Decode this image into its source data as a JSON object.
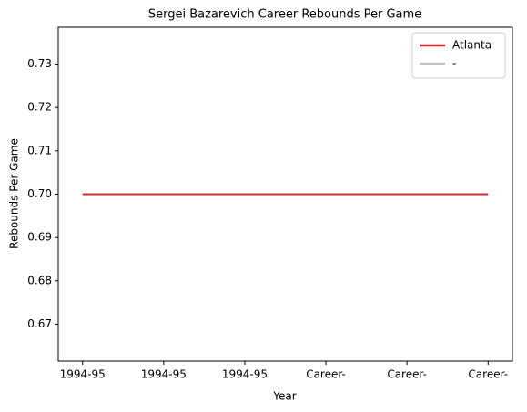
{
  "chart_data": {
    "type": "line",
    "title": "Sergei Bazarevich Career Rebounds Per Game",
    "x_label": "Year",
    "y_label": "Rebounds Per Game",
    "categories": [
      "1994-95",
      "1994-95",
      "1994-95",
      "Career-",
      "Career-",
      "Career-"
    ],
    "series": [
      {
        "name": "Atlanta",
        "color": "#d62728",
        "values": [
          0.7,
          0.7,
          0.7,
          0.7,
          0.7,
          0.7
        ]
      },
      {
        "name": "-",
        "color": "#c0c0c0",
        "values": [
          0.7,
          0.7,
          0.7,
          0.7,
          0.7,
          0.7
        ]
      }
    ],
    "ylim": [
      0.6615,
      0.7385
    ],
    "yticks": [
      {
        "value": 0.67,
        "label": "0.67"
      },
      {
        "value": 0.68,
        "label": "0.68"
      },
      {
        "value": 0.69,
        "label": "0.69"
      },
      {
        "value": 0.7,
        "label": "0.70"
      },
      {
        "value": 0.71,
        "label": "0.71"
      },
      {
        "value": 0.72,
        "label": "0.72"
      },
      {
        "value": 0.73,
        "label": "0.73"
      }
    ],
    "legend": "upper right",
    "grid": false
  }
}
